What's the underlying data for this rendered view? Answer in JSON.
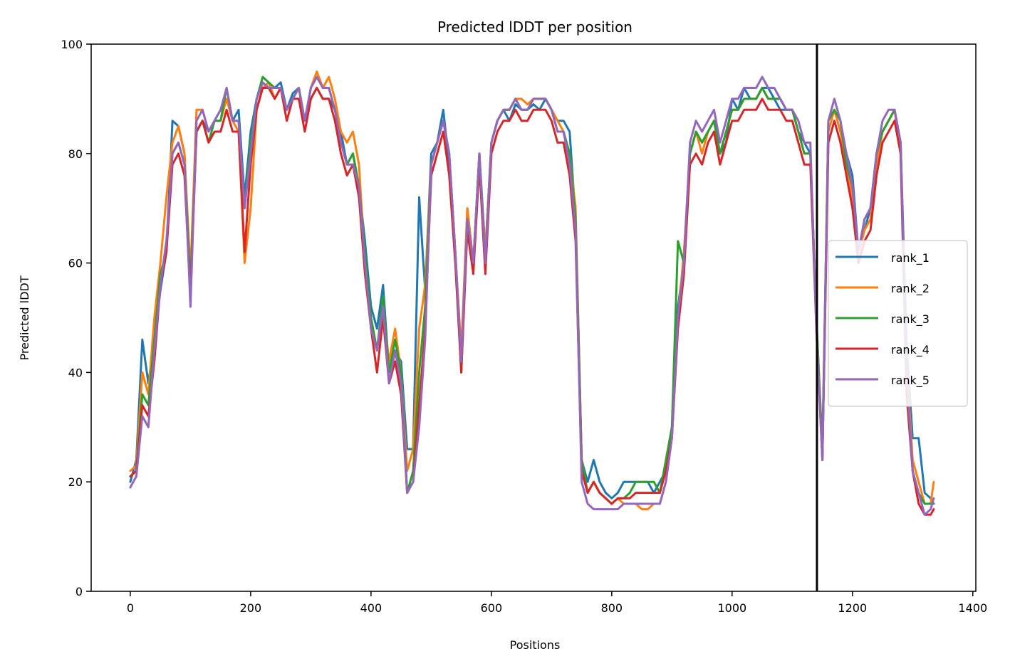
{
  "chart_data": {
    "type": "line",
    "title": "Predicted lDDT per position",
    "xlabel": "Positions",
    "ylabel": "Predicted lDDT",
    "xlim": [
      -65,
      1405
    ],
    "ylim": [
      0,
      100
    ],
    "xticks": [
      0,
      200,
      400,
      600,
      800,
      1000,
      1200,
      1400
    ],
    "yticks": [
      0,
      20,
      40,
      60,
      80,
      100
    ],
    "xtick_labels": [
      "0",
      "200",
      "400",
      "600",
      "800",
      "1000",
      "1200",
      "1400"
    ],
    "ytick_labels": [
      "0",
      "20",
      "40",
      "60",
      "80",
      "100"
    ],
    "grid": false,
    "legend_position": "center-right",
    "vertical_line": {
      "x": 1141,
      "color": "#000000"
    },
    "x": [
      0,
      10,
      20,
      30,
      40,
      50,
      60,
      70,
      80,
      90,
      100,
      110,
      120,
      130,
      140,
      150,
      160,
      170,
      180,
      190,
      200,
      210,
      220,
      230,
      240,
      250,
      260,
      270,
      280,
      290,
      300,
      310,
      320,
      330,
      340,
      350,
      360,
      370,
      380,
      390,
      400,
      410,
      420,
      430,
      440,
      450,
      460,
      470,
      480,
      490,
      500,
      510,
      520,
      530,
      540,
      550,
      560,
      570,
      580,
      590,
      600,
      610,
      620,
      630,
      640,
      650,
      660,
      670,
      680,
      690,
      700,
      710,
      720,
      730,
      740,
      750,
      760,
      770,
      780,
      790,
      800,
      810,
      820,
      830,
      840,
      850,
      860,
      870,
      880,
      890,
      900,
      910,
      920,
      930,
      940,
      950,
      960,
      970,
      980,
      990,
      1000,
      1010,
      1020,
      1030,
      1040,
      1050,
      1060,
      1070,
      1080,
      1090,
      1100,
      1110,
      1120,
      1130,
      1140,
      1150,
      1160,
      1170,
      1180,
      1190,
      1200,
      1210,
      1220,
      1230,
      1240,
      1250,
      1260,
      1270,
      1280,
      1290,
      1300,
      1310,
      1320,
      1330,
      1335
    ],
    "series": [
      {
        "name": "rank_1",
        "color": "#1f77b4",
        "values": [
          20,
          24,
          46,
          38,
          46,
          55,
          62,
          86,
          85,
          80,
          56,
          84,
          86,
          84,
          86,
          88,
          90,
          86,
          88,
          72,
          84,
          90,
          93,
          92,
          92,
          93,
          88,
          91,
          92,
          86,
          90,
          92,
          90,
          90,
          88,
          84,
          78,
          80,
          74,
          64,
          52,
          48,
          56,
          40,
          44,
          42,
          26,
          26,
          72,
          55,
          80,
          82,
          88,
          78,
          62,
          42,
          70,
          60,
          80,
          62,
          82,
          86,
          88,
          86,
          89,
          88,
          88,
          89,
          88,
          90,
          88,
          86,
          86,
          84,
          68,
          24,
          20,
          24,
          20,
          18,
          17,
          18,
          20,
          20,
          20,
          20,
          20,
          18,
          20,
          22,
          30,
          52,
          60,
          80,
          84,
          82,
          84,
          86,
          80,
          82,
          90,
          88,
          92,
          90,
          90,
          92,
          92,
          90,
          88,
          88,
          88,
          84,
          82,
          80,
          50,
          24,
          86,
          88,
          84,
          80,
          76,
          62,
          66,
          70,
          80,
          84,
          86,
          88,
          82,
          45,
          28,
          28,
          18,
          17,
          16
        ]
      },
      {
        "name": "rank_2",
        "color": "#ff7f0e",
        "values": [
          22,
          23,
          40,
          36,
          50,
          60,
          72,
          82,
          85,
          80,
          58,
          88,
          88,
          84,
          86,
          86,
          90,
          86,
          84,
          60,
          70,
          88,
          92,
          93,
          90,
          92,
          88,
          90,
          92,
          86,
          92,
          95,
          92,
          94,
          90,
          84,
          82,
          84,
          78,
          60,
          50,
          44,
          52,
          42,
          48,
          40,
          22,
          26,
          48,
          56,
          78,
          82,
          86,
          80,
          62,
          44,
          70,
          60,
          78,
          62,
          82,
          86,
          88,
          88,
          90,
          90,
          89,
          90,
          90,
          90,
          88,
          86,
          84,
          80,
          70,
          24,
          18,
          20,
          18,
          17,
          16,
          17,
          16,
          16,
          16,
          15,
          15,
          16,
          16,
          20,
          28,
          50,
          62,
          80,
          84,
          80,
          84,
          86,
          80,
          84,
          88,
          88,
          90,
          90,
          90,
          92,
          90,
          90,
          90,
          88,
          88,
          84,
          80,
          80,
          50,
          26,
          84,
          88,
          84,
          78,
          72,
          62,
          66,
          68,
          78,
          84,
          86,
          88,
          80,
          42,
          24,
          20,
          16,
          16,
          20
        ]
      },
      {
        "name": "rank_3",
        "color": "#2ca02c",
        "values": [
          21,
          22,
          36,
          34,
          46,
          58,
          62,
          80,
          82,
          78,
          56,
          84,
          86,
          82,
          86,
          86,
          92,
          86,
          86,
          70,
          82,
          90,
          94,
          93,
          92,
          92,
          88,
          90,
          92,
          86,
          92,
          94,
          92,
          92,
          88,
          82,
          78,
          80,
          74,
          62,
          50,
          44,
          54,
          40,
          46,
          40,
          18,
          22,
          40,
          52,
          78,
          82,
          86,
          80,
          62,
          40,
          68,
          60,
          80,
          60,
          82,
          86,
          88,
          88,
          90,
          88,
          88,
          90,
          90,
          90,
          88,
          84,
          84,
          80,
          68,
          24,
          18,
          20,
          18,
          17,
          16,
          17,
          17,
          18,
          20,
          20,
          20,
          20,
          18,
          24,
          30,
          64,
          60,
          80,
          84,
          82,
          84,
          86,
          80,
          84,
          88,
          88,
          90,
          90,
          90,
          92,
          90,
          90,
          90,
          88,
          88,
          84,
          80,
          80,
          50,
          26,
          86,
          88,
          86,
          78,
          74,
          62,
          68,
          70,
          80,
          84,
          86,
          88,
          82,
          40,
          22,
          18,
          16,
          16,
          16
        ]
      },
      {
        "name": "rank_4",
        "color": "#d62728",
        "values": [
          21,
          22,
          34,
          32,
          42,
          56,
          62,
          78,
          80,
          76,
          54,
          84,
          86,
          82,
          84,
          84,
          88,
          84,
          84,
          62,
          78,
          88,
          92,
          92,
          90,
          92,
          86,
          90,
          90,
          84,
          90,
          92,
          90,
          90,
          86,
          80,
          76,
          78,
          72,
          58,
          48,
          40,
          50,
          38,
          42,
          36,
          18,
          20,
          34,
          48,
          76,
          80,
          84,
          76,
          60,
          40,
          66,
          58,
          78,
          58,
          80,
          84,
          86,
          86,
          88,
          86,
          86,
          88,
          88,
          88,
          86,
          82,
          82,
          76,
          64,
          22,
          18,
          20,
          18,
          17,
          16,
          17,
          17,
          17,
          18,
          18,
          18,
          18,
          18,
          22,
          28,
          48,
          58,
          78,
          80,
          78,
          82,
          84,
          78,
          82,
          86,
          86,
          88,
          88,
          88,
          90,
          88,
          88,
          88,
          86,
          86,
          82,
          78,
          78,
          48,
          24,
          82,
          86,
          82,
          76,
          70,
          60,
          64,
          66,
          76,
          82,
          84,
          86,
          80,
          36,
          22,
          16,
          14,
          14,
          15
        ]
      },
      {
        "name": "rank_5",
        "color": "#9467bd",
        "values": [
          19,
          21,
          32,
          30,
          44,
          56,
          64,
          80,
          82,
          78,
          52,
          86,
          88,
          84,
          86,
          88,
          92,
          86,
          86,
          70,
          80,
          90,
          93,
          92,
          92,
          92,
          88,
          90,
          92,
          86,
          92,
          94,
          92,
          92,
          88,
          82,
          78,
          78,
          74,
          60,
          48,
          44,
          52,
          38,
          44,
          38,
          18,
          20,
          30,
          46,
          78,
          82,
          86,
          80,
          62,
          42,
          68,
          60,
          80,
          60,
          82,
          86,
          88,
          88,
          90,
          88,
          88,
          90,
          90,
          90,
          88,
          84,
          84,
          78,
          66,
          20,
          16,
          15,
          15,
          15,
          15,
          15,
          16,
          16,
          16,
          16,
          16,
          16,
          16,
          20,
          28,
          50,
          60,
          82,
          86,
          84,
          86,
          88,
          82,
          86,
          90,
          90,
          92,
          92,
          92,
          94,
          92,
          92,
          90,
          88,
          88,
          86,
          82,
          82,
          48,
          24,
          86,
          90,
          86,
          80,
          74,
          62,
          68,
          70,
          80,
          86,
          88,
          88,
          82,
          40,
          22,
          18,
          14,
          15,
          17
        ]
      }
    ]
  }
}
